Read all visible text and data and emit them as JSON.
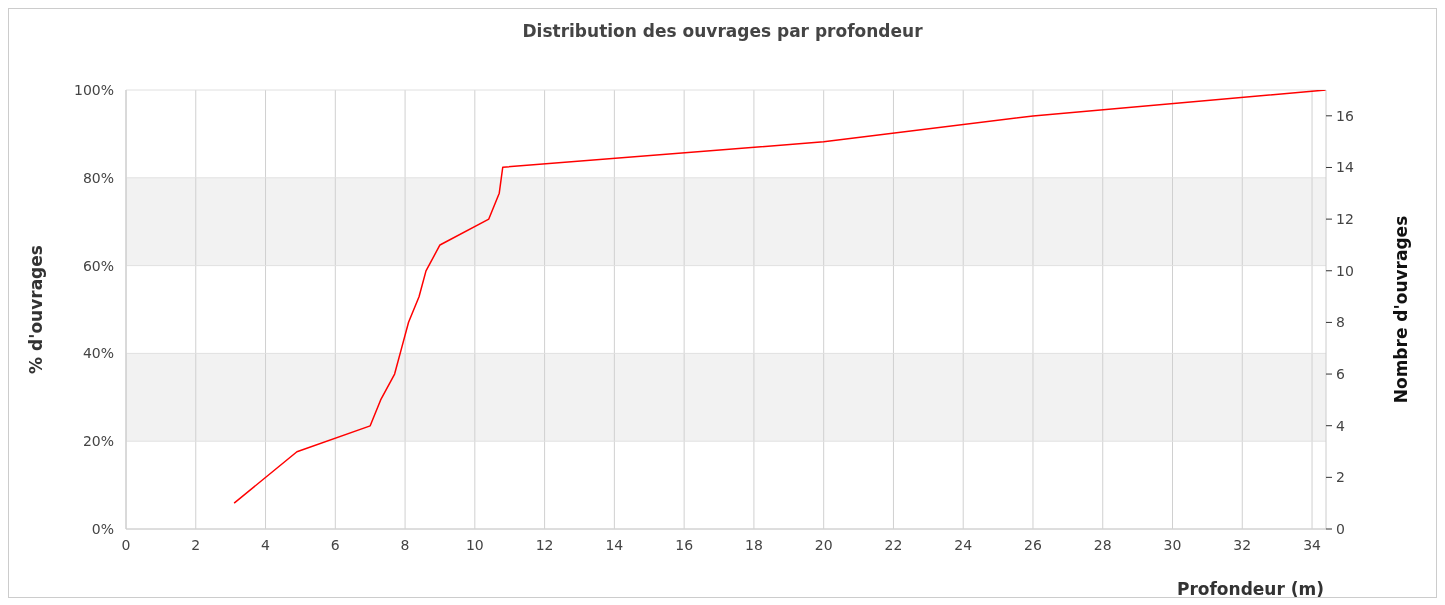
{
  "chart_data": {
    "type": "line",
    "title": "Distribution des ouvrages par profondeur",
    "xlabel": "Profondeur (m)",
    "ylabel": "% d'ouvrages",
    "y2label": "Nombre d'ouvrages",
    "x": [
      3.1,
      4.9,
      7.0,
      7.3,
      7.7,
      7.9,
      8.1,
      8.4,
      8.6,
      9.0,
      10.4,
      10.7,
      10.8,
      20,
      26,
      34.4
    ],
    "series": [
      {
        "color": "#ff0000",
        "values": [
          5.9,
          17.6,
          23.5,
          29.4,
          35.3,
          41.2,
          47.1,
          52.9,
          58.8,
          64.7,
          70.6,
          76.5,
          82.4,
          88.2,
          94.1,
          100
        ]
      }
    ],
    "xlim": [
      0,
      34.4
    ],
    "xticks": [
      0,
      2,
      4,
      6,
      8,
      10,
      12,
      14,
      16,
      18,
      20,
      22,
      24,
      26,
      28,
      30,
      32,
      34
    ],
    "ylim": [
      0,
      100
    ],
    "yticks": [
      {
        "value": 0,
        "label": "0%"
      },
      {
        "value": 20,
        "label": "20%"
      },
      {
        "value": 40,
        "label": "40%"
      },
      {
        "value": 60,
        "label": "60%"
      },
      {
        "value": 80,
        "label": "80%"
      },
      {
        "value": 100,
        "label": "100%"
      }
    ],
    "y2lim": [
      0,
      17
    ],
    "y2ticks": [
      0,
      2,
      4,
      6,
      8,
      10,
      12,
      14,
      16
    ],
    "bands": [
      {
        "axis": "y",
        "from": 20,
        "to": 40,
        "color": "#f2f2f2"
      },
      {
        "axis": "y",
        "from": 60,
        "to": 80,
        "color": "#f2f2f2"
      }
    ],
    "grid": true,
    "marker": "none",
    "line_style": "solid"
  }
}
